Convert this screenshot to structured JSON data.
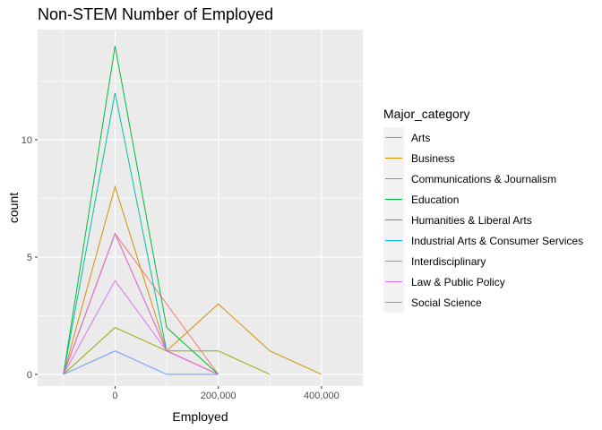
{
  "chart_data": {
    "type": "line",
    "title": "Non-STEM Number of Employed",
    "xlabel": "Employed",
    "ylabel": "count",
    "legend_title": "Major_category",
    "legend_position": "right",
    "grid": true,
    "xlim": [
      -150000,
      480000
    ],
    "ylim": [
      -0.5,
      14.7
    ],
    "x_ticks": [
      0,
      200000,
      400000
    ],
    "x_tick_labels": [
      "0",
      "200,000",
      "400,000"
    ],
    "x_minor_ticks": [
      -100000,
      100000,
      300000
    ],
    "y_ticks": [
      0,
      5,
      10
    ],
    "y_tick_labels": [
      "0",
      "5",
      "10"
    ],
    "y_minor_ticks": [
      2.5,
      7.5,
      12.5
    ],
    "series": [
      {
        "name": "Arts",
        "color": "#F8766D",
        "x": [
          -100000,
          0,
          100000,
          200000
        ],
        "y": [
          0,
          6,
          3,
          0
        ]
      },
      {
        "name": "Business",
        "color": "#D39200",
        "x": [
          -100000,
          0,
          100000,
          200000,
          300000,
          400000
        ],
        "y": [
          0,
          8,
          1,
          3,
          1,
          0
        ]
      },
      {
        "name": "Communications & Journalism",
        "color": "#93AA00",
        "x": [
          -100000,
          0,
          100000,
          200000,
          300000
        ],
        "y": [
          0,
          2,
          1,
          1,
          0
        ]
      },
      {
        "name": "Education",
        "color": "#00BA38",
        "x": [
          -100000,
          0,
          100000,
          200000
        ],
        "y": [
          0,
          14,
          2,
          0
        ]
      },
      {
        "name": "Humanities & Liberal Arts",
        "color": "#00C19F",
        "x": [
          -100000,
          0,
          100000,
          200000
        ],
        "y": [
          0,
          12,
          1,
          0
        ]
      },
      {
        "name": "Industrial Arts & Consumer Services",
        "color": "#00B9E3",
        "x": [
          -100000,
          0,
          100000,
          200000
        ],
        "y": [
          0,
          6,
          1,
          0
        ]
      },
      {
        "name": "Interdisciplinary",
        "color": "#619CFF",
        "x": [
          -100000,
          0,
          100000,
          200000
        ],
        "y": [
          0,
          1,
          0,
          0
        ]
      },
      {
        "name": "Law & Public Policy",
        "color": "#DB72FB",
        "x": [
          -100000,
          0,
          100000,
          200000
        ],
        "y": [
          0,
          4,
          1,
          0
        ]
      },
      {
        "name": "Social Science",
        "color": "#FF61C3",
        "x": [
          -100000,
          0,
          100000,
          200000
        ],
        "y": [
          0,
          6,
          1,
          0
        ]
      }
    ]
  }
}
